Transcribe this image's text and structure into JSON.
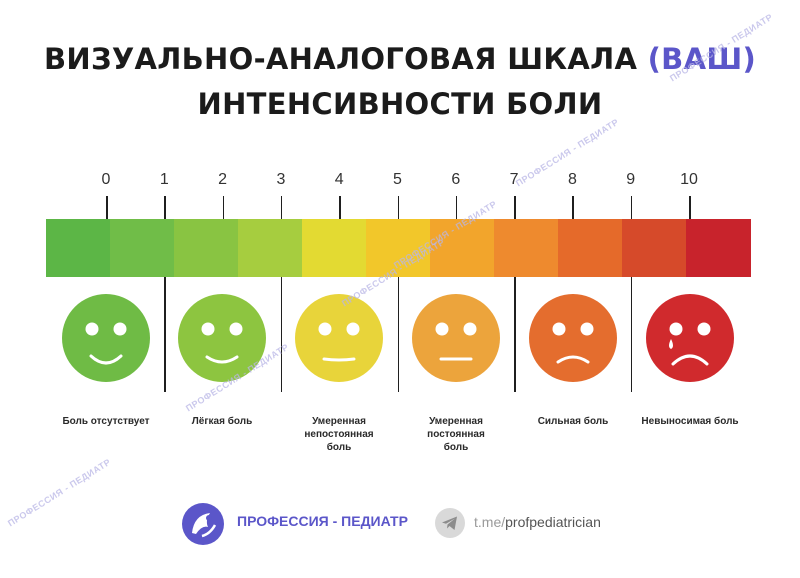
{
  "header": {
    "title_line1": "ВИЗУАЛЬНО-АНАЛОГОВАЯ ШКАЛА",
    "title_accent": "(ВАШ)",
    "title_line2": "ИНТЕНСИВНОСТИ БОЛИ"
  },
  "scale": {
    "ticks": [
      "0",
      "1",
      "2",
      "3",
      "4",
      "5",
      "6",
      "7",
      "8",
      "9",
      "10"
    ],
    "colors": [
      "#5cb646",
      "#70bd48",
      "#89c442",
      "#a6cd3f",
      "#e3da32",
      "#f2c72a",
      "#f2a52c",
      "#ee8a2e",
      "#e56a2a",
      "#d64a2a",
      "#c8232c"
    ]
  },
  "faces": [
    {
      "label_lines": [
        "Боль отсутствует"
      ],
      "color": "#6fbb45",
      "mood": "happy"
    },
    {
      "label_lines": [
        "Лёгкая боль"
      ],
      "color": "#8dc540",
      "mood": "smile"
    },
    {
      "label_lines": [
        "Умеренная",
        "непостоянная",
        "боль"
      ],
      "color": "#e8d43a",
      "mood": "neutral"
    },
    {
      "label_lines": [
        "Умеренная",
        "постоянная",
        "боль"
      ],
      "color": "#eca43c",
      "mood": "flat"
    },
    {
      "label_lines": [
        "Сильная боль"
      ],
      "color": "#e46d2e",
      "mood": "sad"
    },
    {
      "label_lines": [
        "Невыносимая боль"
      ],
      "color": "#d02a2d",
      "mood": "cry"
    }
  ],
  "watermark": "ПРОФЕССИЯ - ПЕДИАТР",
  "footer": {
    "brand": "ПРОФЕССИЯ - ПЕДИАТР",
    "tg_prefix": "t.me/",
    "tg_handle": "profpediatrician",
    "brand_color": "#5b56c9"
  }
}
